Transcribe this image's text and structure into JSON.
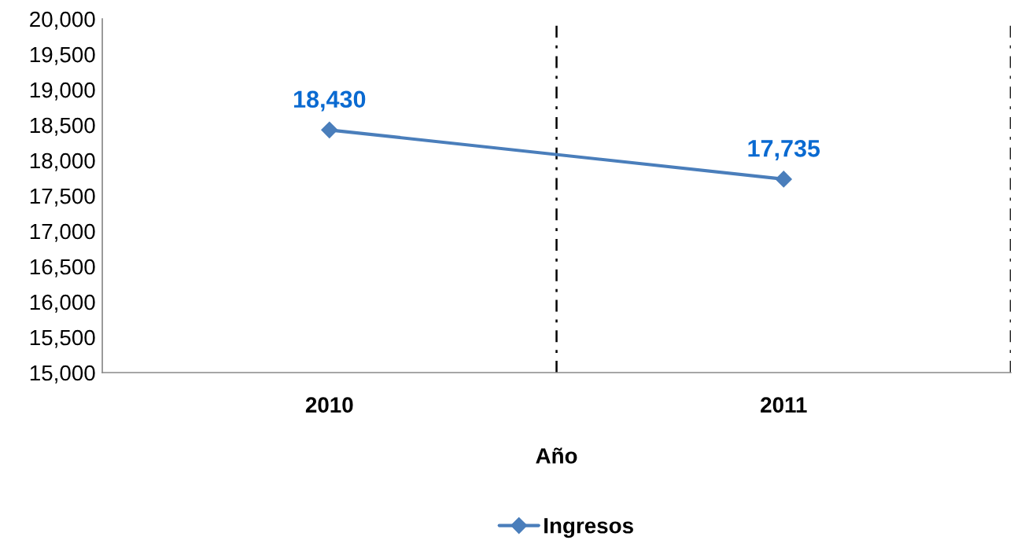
{
  "chart_data": {
    "type": "line",
    "xlabel": "Año",
    "categories": [
      "2010",
      "2011"
    ],
    "series": [
      {
        "name": "Ingresos",
        "color": "#4a7ebb",
        "values": [
          18430,
          17735
        ]
      }
    ],
    "ylim": [
      15000,
      20000
    ],
    "yticks": [
      {
        "value": 15000,
        "label": "15,000"
      },
      {
        "value": 15500,
        "label": "15,500"
      },
      {
        "value": 16000,
        "label": "16,000"
      },
      {
        "value": 16500,
        "label": "16,500"
      },
      {
        "value": 17000,
        "label": "17,000"
      },
      {
        "value": 17500,
        "label": "17,500"
      },
      {
        "value": 18000,
        "label": "18,000"
      },
      {
        "value": 18500,
        "label": "18,500"
      },
      {
        "value": 19000,
        "label": "19,000"
      },
      {
        "value": 19500,
        "label": "19,500"
      },
      {
        "value": 20000,
        "label": "20,000"
      }
    ],
    "value_labels": [
      "18,430",
      "17,735"
    ],
    "grid": "x",
    "legend": "bottom",
    "marker": "diamond",
    "line_style": "solid"
  }
}
